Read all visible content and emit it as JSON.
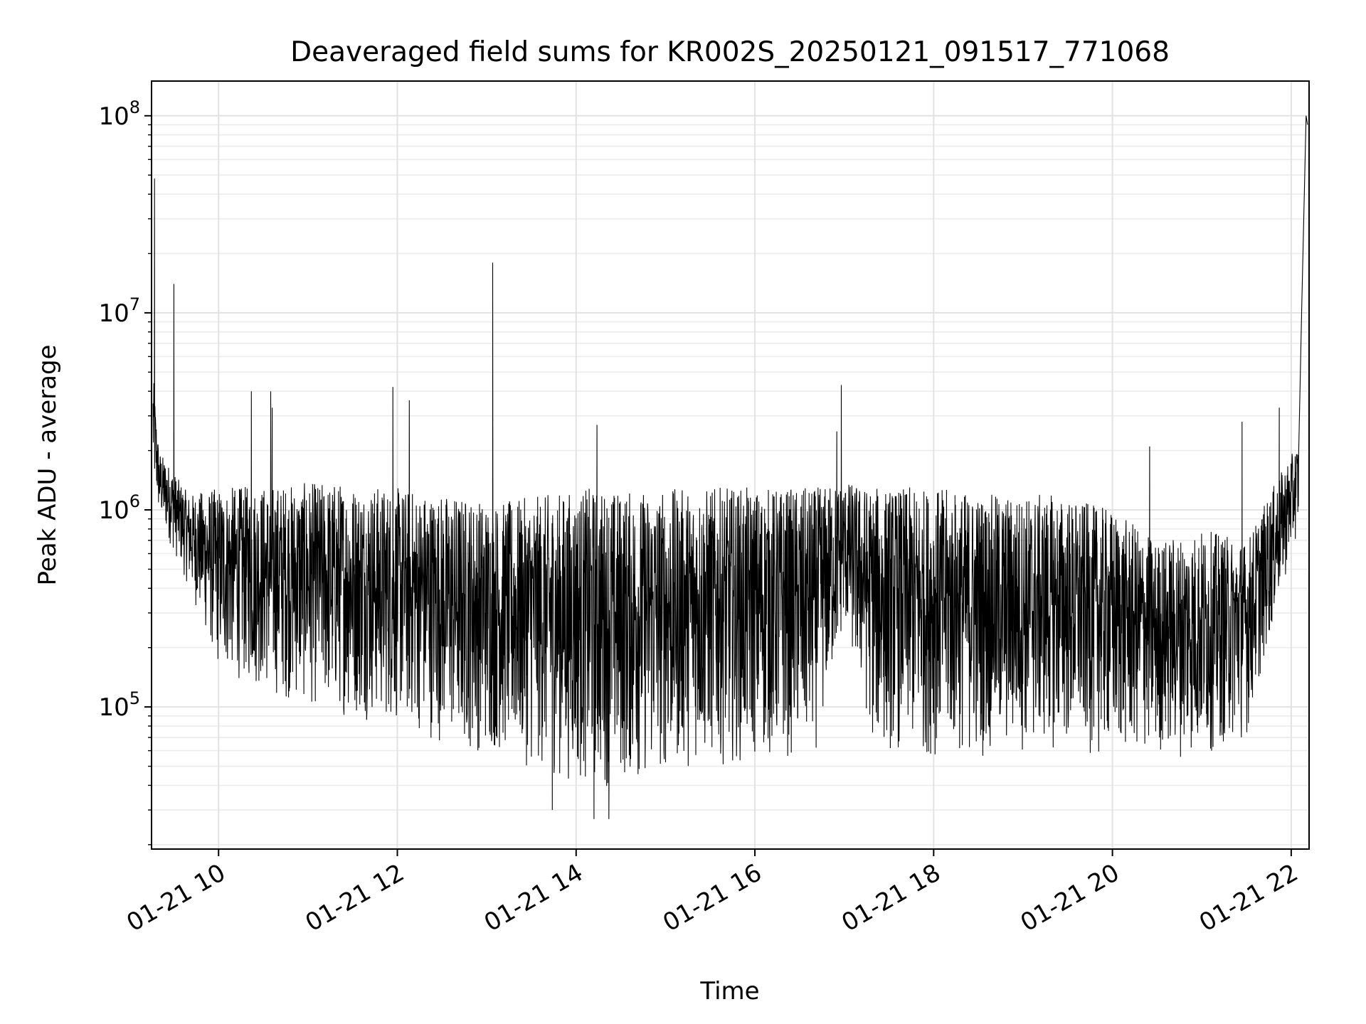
{
  "chart_data": {
    "type": "line",
    "title": "Deaveraged field sums for KR002S_20250121_091517_771068",
    "xlabel": "Time",
    "ylabel": "Peak ADU - average",
    "x_scale": "time",
    "y_scale": "log",
    "xlim": [
      "2025-01-21 09:15",
      "2025-01-21 22:12"
    ],
    "ylim": [
      19000,
      150000000
    ],
    "grid": true,
    "legend": "none",
    "x_ticks": [
      {
        "value": "2025-01-21 10:00",
        "label": "01-21 10"
      },
      {
        "value": "2025-01-21 12:00",
        "label": "01-21 12"
      },
      {
        "value": "2025-01-21 14:00",
        "label": "01-21 14"
      },
      {
        "value": "2025-01-21 16:00",
        "label": "01-21 16"
      },
      {
        "value": "2025-01-21 18:00",
        "label": "01-21 18"
      },
      {
        "value": "2025-01-21 20:00",
        "label": "01-21 20"
      },
      {
        "value": "2025-01-21 22:00",
        "label": "01-21 22"
      }
    ],
    "y_ticks": [
      {
        "value": 100000,
        "base": "10",
        "exp": "5"
      },
      {
        "value": 1000000,
        "base": "10",
        "exp": "6"
      },
      {
        "value": 10000000,
        "base": "10",
        "exp": "7"
      },
      {
        "value": 100000000,
        "base": "10",
        "exp": "8"
      }
    ],
    "series": [
      {
        "color": "#000000",
        "envelope": [
          {
            "t": "2025-01-21 09:16",
            "upper": 5000000,
            "lower": 1300000
          },
          {
            "t": "2025-01-21 09:20",
            "upper": 2000000,
            "lower": 900000
          },
          {
            "t": "2025-01-21 09:40",
            "upper": 1200000,
            "lower": 400000
          },
          {
            "t": "2025-01-21 10:00",
            "upper": 1300000,
            "lower": 150000
          },
          {
            "t": "2025-01-21 10:40",
            "upper": 1350000,
            "lower": 110000
          },
          {
            "t": "2025-01-21 11:20",
            "upper": 1400000,
            "lower": 90000
          },
          {
            "t": "2025-01-21 12:00",
            "upper": 1300000,
            "lower": 80000
          },
          {
            "t": "2025-01-21 12:40",
            "upper": 1200000,
            "lower": 60000
          },
          {
            "t": "2025-01-21 13:10",
            "upper": 1100000,
            "lower": 55000
          },
          {
            "t": "2025-01-21 13:40",
            "upper": 1200000,
            "lower": 45000
          },
          {
            "t": "2025-01-21 14:10",
            "upper": 1300000,
            "lower": 38000
          },
          {
            "t": "2025-01-21 14:40",
            "upper": 1250000,
            "lower": 40000
          },
          {
            "t": "2025-01-21 15:20",
            "upper": 1300000,
            "lower": 50000
          },
          {
            "t": "2025-01-21 16:00",
            "upper": 1300000,
            "lower": 52000
          },
          {
            "t": "2025-01-21 16:40",
            "upper": 1300000,
            "lower": 55000
          },
          {
            "t": "2025-01-21 17:00",
            "upper": 1400000,
            "lower": 250000
          },
          {
            "t": "2025-01-21 17:20",
            "upper": 1300000,
            "lower": 60000
          },
          {
            "t": "2025-01-21 18:00",
            "upper": 1300000,
            "lower": 55000
          },
          {
            "t": "2025-01-21 18:40",
            "upper": 1200000,
            "lower": 55000
          },
          {
            "t": "2025-01-21 19:20",
            "upper": 1200000,
            "lower": 60000
          },
          {
            "t": "2025-01-21 20:00",
            "upper": 1000000,
            "lower": 55000
          },
          {
            "t": "2025-01-21 20:30",
            "upper": 700000,
            "lower": 55000
          },
          {
            "t": "2025-01-21 21:00",
            "upper": 800000,
            "lower": 55000
          },
          {
            "t": "2025-01-21 21:30",
            "upper": 700000,
            "lower": 70000
          },
          {
            "t": "2025-01-21 21:50",
            "upper": 1400000,
            "lower": 300000
          },
          {
            "t": "2025-01-21 22:05",
            "upper": 2200000,
            "lower": 800000
          }
        ],
        "spikes": [
          {
            "t": "2025-01-21 09:17",
            "y": 48000000
          },
          {
            "t": "2025-01-21 09:30",
            "y": 14000000
          },
          {
            "t": "2025-01-21 10:22",
            "y": 4000000
          },
          {
            "t": "2025-01-21 10:35",
            "y": 4000000
          },
          {
            "t": "2025-01-21 10:36",
            "y": 3300000
          },
          {
            "t": "2025-01-21 11:57",
            "y": 4200000
          },
          {
            "t": "2025-01-21 12:08",
            "y": 3600000
          },
          {
            "t": "2025-01-21 13:04",
            "y": 18000000
          },
          {
            "t": "2025-01-21 14:14",
            "y": 2700000
          },
          {
            "t": "2025-01-21 16:58",
            "y": 4300000
          },
          {
            "t": "2025-01-21 16:55",
            "y": 2500000
          },
          {
            "t": "2025-01-21 20:25",
            "y": 2100000
          },
          {
            "t": "2025-01-21 21:27",
            "y": 2800000
          },
          {
            "t": "2025-01-21 21:52",
            "y": 3300000
          },
          {
            "t": "2025-01-21 22:07",
            "y": 10000000
          },
          {
            "t": "2025-01-21 22:10",
            "y": 100000000
          },
          {
            "t": "2025-01-21 22:11",
            "y": 90000000
          },
          {
            "t": "2025-01-21 13:44",
            "y": 30000
          },
          {
            "t": "2025-01-21 14:12",
            "y": 27000
          },
          {
            "t": "2025-01-21 14:22",
            "y": 27000
          }
        ]
      }
    ]
  }
}
